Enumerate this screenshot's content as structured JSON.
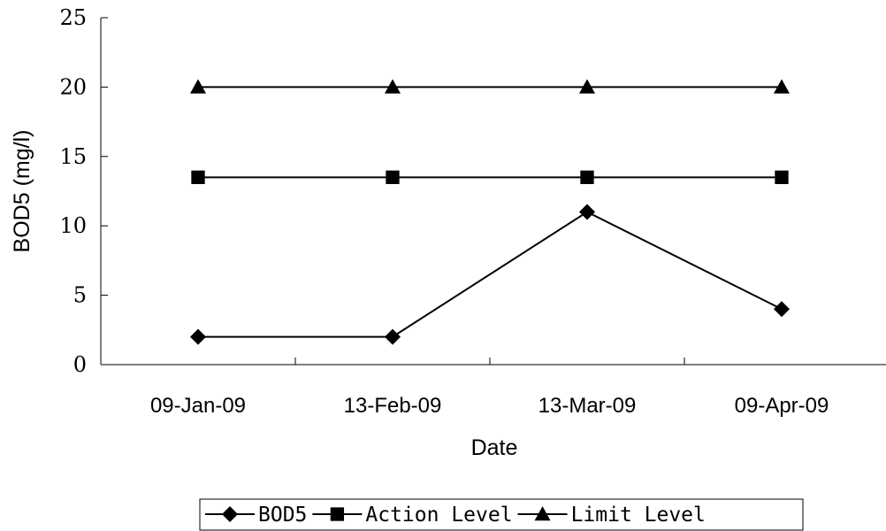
{
  "chart_data": {
    "type": "line",
    "categories": [
      "09-Jan-09",
      "13-Feb-09",
      "13-Mar-09",
      "09-Apr-09"
    ],
    "series": [
      {
        "name": "BOD5",
        "values": [
          2,
          2,
          11,
          4
        ],
        "marker": "diamond",
        "color": "#000000"
      },
      {
        "name": "Action Level",
        "values": [
          13.5,
          13.5,
          13.5,
          13.5
        ],
        "marker": "square",
        "color": "#000000"
      },
      {
        "name": "Limit Level",
        "values": [
          20,
          20,
          20,
          20
        ],
        "marker": "triangle",
        "color": "#000000"
      }
    ],
    "xlabel": "Date",
    "ylabel": "BOD5 (mg/l)",
    "ylim": [
      0,
      25
    ],
    "yticks": [
      "0",
      "5",
      "10",
      "15",
      "20",
      "25"
    ],
    "grid": false,
    "legend_position": "bottom"
  }
}
